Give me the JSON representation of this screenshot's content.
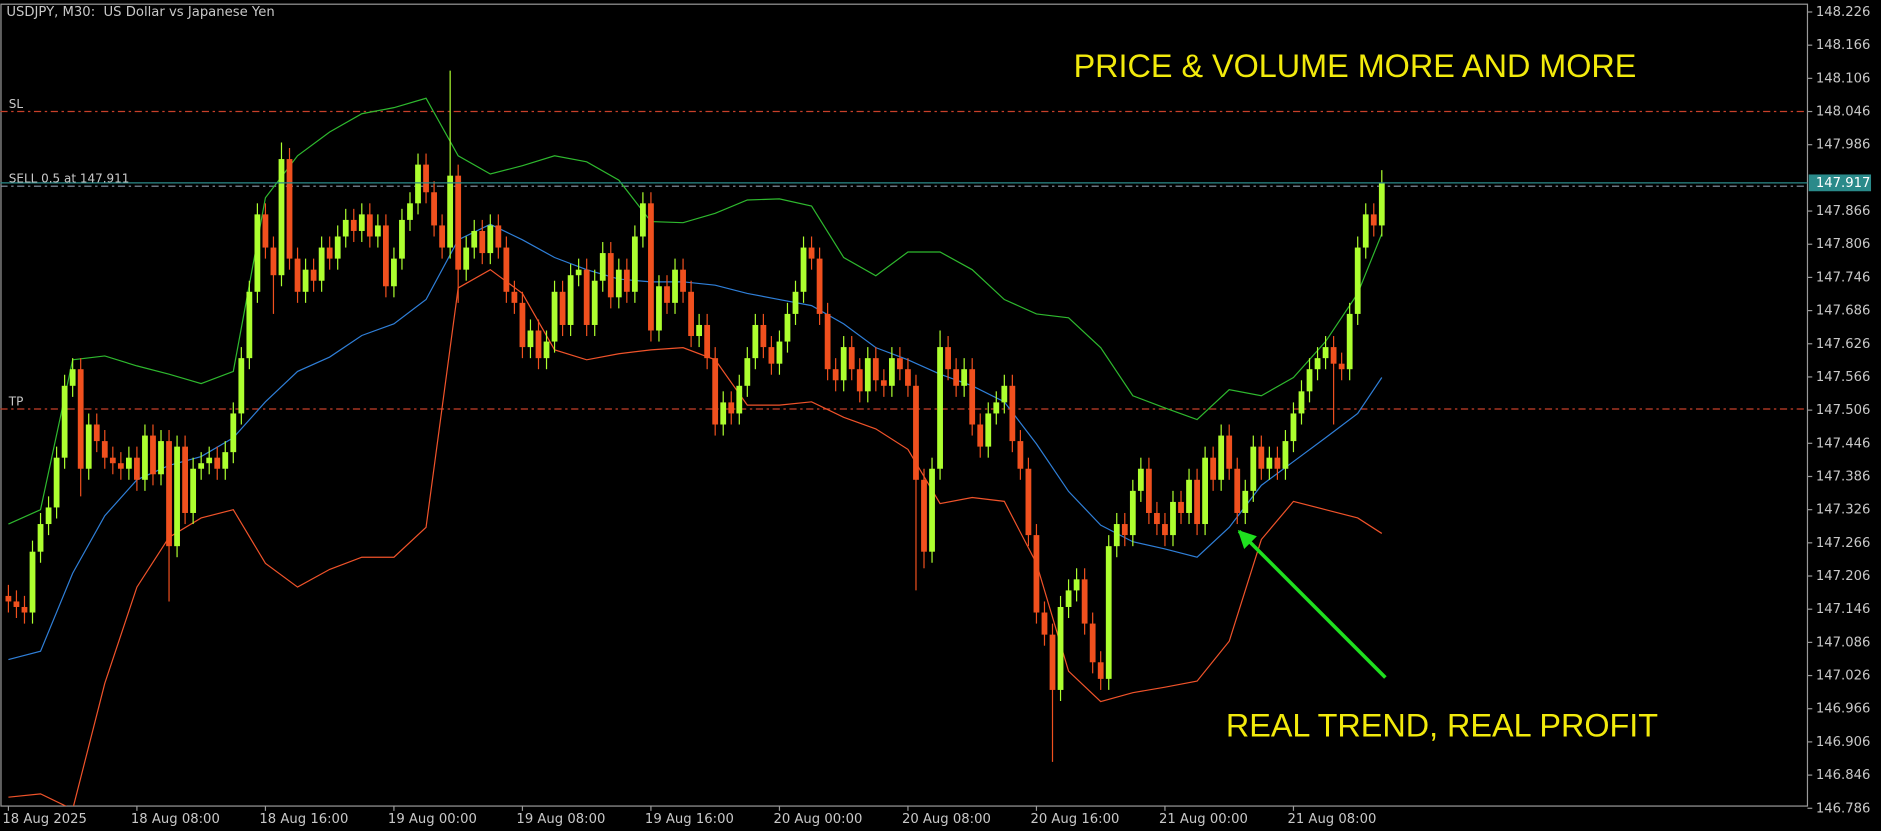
{
  "chart_data": {
    "type": "candlestick",
    "title": "USDJPY, M30:  US Dollar vs Japanese Yen",
    "up_color": "#adff2f",
    "down_color": "#f0501e",
    "grid": false,
    "xlim": [
      -1,
      224
    ],
    "ylim": [
      146.79,
      148.24
    ],
    "xticks": [
      {
        "value": 0,
        "label": "18 Aug 2025"
      },
      {
        "value": 16,
        "label": "18 Aug 08:00"
      },
      {
        "value": 32,
        "label": "18 Aug 16:00"
      },
      {
        "value": 48,
        "label": "19 Aug 00:00"
      },
      {
        "value": 64,
        "label": "19 Aug 08:00"
      },
      {
        "value": 80,
        "label": "19 Aug 16:00"
      },
      {
        "value": 96,
        "label": "20 Aug 00:00"
      },
      {
        "value": 112,
        "label": "20 Aug 08:00"
      },
      {
        "value": 128,
        "label": "20 Aug 16:00"
      },
      {
        "value": 144,
        "label": "21 Aug 00:00"
      },
      {
        "value": 160,
        "label": "21 Aug 08:00"
      }
    ],
    "yticks": [
      148.226,
      148.166,
      148.106,
      148.046,
      147.986,
      147.866,
      147.806,
      147.746,
      147.686,
      147.626,
      147.566,
      147.506,
      147.446,
      147.386,
      147.326,
      147.266,
      147.206,
      147.146,
      147.086,
      147.026,
      146.966,
      146.906,
      146.846,
      146.786
    ],
    "candles": {
      "open": [
        147.17,
        147.16,
        147.15,
        147.14,
        147.25,
        147.3,
        147.33,
        147.42,
        147.55,
        147.58,
        147.4,
        147.48,
        147.45,
        147.42,
        147.41,
        147.4,
        147.42,
        147.38,
        147.46,
        147.39,
        147.45,
        147.26,
        147.44,
        147.32,
        147.4,
        147.41,
        147.42,
        147.4,
        147.43,
        147.5,
        147.6,
        147.72,
        147.86,
        147.8,
        147.75,
        147.96,
        147.78,
        147.72,
        147.76,
        147.74,
        147.8,
        147.78,
        147.82,
        147.85,
        147.83,
        147.86,
        147.82,
        147.84,
        147.73,
        147.78,
        147.85,
        147.88,
        147.95,
        147.9,
        147.84,
        147.8,
        147.93,
        147.76,
        147.8,
        147.83,
        147.79,
        147.84,
        147.8,
        147.72,
        147.7,
        147.62,
        147.65,
        147.6,
        147.63,
        147.72,
        147.66,
        147.75,
        147.76,
        147.66,
        147.74,
        147.79,
        147.71,
        147.76,
        147.72,
        147.82,
        147.88,
        147.65,
        147.73,
        147.7,
        147.76,
        147.72,
        147.64,
        147.66,
        147.6,
        147.48,
        147.52,
        147.5,
        147.55,
        147.6,
        147.66,
        147.62,
        147.59,
        147.63,
        147.68,
        147.72,
        147.8,
        147.78,
        147.68,
        147.58,
        147.56,
        147.62,
        147.58,
        147.54,
        147.6,
        147.56,
        147.55,
        147.6,
        147.58,
        147.55,
        147.38,
        147.25,
        147.4,
        147.62,
        147.58,
        147.55,
        147.58,
        147.48,
        147.44,
        147.5,
        147.52,
        147.55,
        147.45,
        147.4,
        147.28,
        147.14,
        147.1,
        147.0,
        147.15,
        147.18,
        147.2,
        147.12,
        147.05,
        147.02,
        147.26,
        147.3,
        147.28,
        147.36,
        147.4,
        147.32,
        147.3,
        147.28,
        147.34,
        147.32,
        147.38,
        147.3,
        147.42,
        147.38,
        147.46,
        147.4,
        147.32,
        147.36,
        147.44,
        147.4,
        147.42,
        147.4,
        147.45,
        147.5,
        147.54,
        147.58,
        147.6,
        147.62,
        147.59,
        147.58,
        147.68,
        147.8,
        147.86,
        147.84
      ],
      "high": [
        147.19,
        147.18,
        147.17,
        147.27,
        147.32,
        147.35,
        147.44,
        147.57,
        147.6,
        147.6,
        147.5,
        147.5,
        147.47,
        147.44,
        147.43,
        147.44,
        147.44,
        147.48,
        147.48,
        147.47,
        147.47,
        147.46,
        147.46,
        147.42,
        147.43,
        147.44,
        147.44,
        147.45,
        147.52,
        147.62,
        147.74,
        147.88,
        147.88,
        147.82,
        147.99,
        147.98,
        147.8,
        147.78,
        147.78,
        147.82,
        147.82,
        147.84,
        147.87,
        147.87,
        147.88,
        147.88,
        147.86,
        147.86,
        147.8,
        147.87,
        147.9,
        147.97,
        147.97,
        147.92,
        147.86,
        148.12,
        147.95,
        147.82,
        147.85,
        147.85,
        147.86,
        147.86,
        147.82,
        147.74,
        147.72,
        147.67,
        147.67,
        147.65,
        147.74,
        147.74,
        147.77,
        147.78,
        147.78,
        147.76,
        147.81,
        147.81,
        147.78,
        147.78,
        147.84,
        147.9,
        147.9,
        147.75,
        147.75,
        147.78,
        147.78,
        147.74,
        147.68,
        147.68,
        147.62,
        147.54,
        147.54,
        147.57,
        147.62,
        147.68,
        147.68,
        147.64,
        147.65,
        147.7,
        147.74,
        147.82,
        147.82,
        147.8,
        147.7,
        147.6,
        147.64,
        147.64,
        147.6,
        147.62,
        147.62,
        147.58,
        147.62,
        147.62,
        147.6,
        147.57,
        147.4,
        147.42,
        147.65,
        147.64,
        147.6,
        147.6,
        147.6,
        147.5,
        147.52,
        147.54,
        147.57,
        147.57,
        147.47,
        147.42,
        147.3,
        147.16,
        147.12,
        147.17,
        147.2,
        147.22,
        147.22,
        147.14,
        147.07,
        147.28,
        147.32,
        147.32,
        147.38,
        147.42,
        147.42,
        147.34,
        147.32,
        147.36,
        147.36,
        147.4,
        147.4,
        147.44,
        147.44,
        147.48,
        147.48,
        147.42,
        147.38,
        147.46,
        147.46,
        147.44,
        147.44,
        147.47,
        147.52,
        147.56,
        147.6,
        147.62,
        147.64,
        147.64,
        147.61,
        147.7,
        147.82,
        147.88,
        147.88,
        147.94
      ],
      "low": [
        147.14,
        147.13,
        147.12,
        147.12,
        147.23,
        147.28,
        147.31,
        147.4,
        147.53,
        147.35,
        147.38,
        147.43,
        147.4,
        147.39,
        147.38,
        147.38,
        147.36,
        147.36,
        147.37,
        147.37,
        147.16,
        147.24,
        147.3,
        147.3,
        147.38,
        147.39,
        147.38,
        147.38,
        147.41,
        147.48,
        147.58,
        147.7,
        147.78,
        147.68,
        147.73,
        147.76,
        147.7,
        147.7,
        147.72,
        147.72,
        147.76,
        147.76,
        147.8,
        147.81,
        147.81,
        147.8,
        147.8,
        147.71,
        147.71,
        147.76,
        147.83,
        147.86,
        147.88,
        147.82,
        147.78,
        147.78,
        147.7,
        147.74,
        147.78,
        147.77,
        147.77,
        147.78,
        147.7,
        147.68,
        147.6,
        147.6,
        147.58,
        147.58,
        147.61,
        147.64,
        147.64,
        147.73,
        147.64,
        147.64,
        147.72,
        147.69,
        147.69,
        147.7,
        147.7,
        147.8,
        147.63,
        147.63,
        147.68,
        147.68,
        147.7,
        147.62,
        147.62,
        147.58,
        147.46,
        147.46,
        147.48,
        147.48,
        147.53,
        147.58,
        147.6,
        147.57,
        147.57,
        147.61,
        147.66,
        147.7,
        147.76,
        147.66,
        147.56,
        147.54,
        147.54,
        147.56,
        147.52,
        147.52,
        147.54,
        147.53,
        147.53,
        147.56,
        147.53,
        147.18,
        147.22,
        147.23,
        147.38,
        147.56,
        147.53,
        147.53,
        147.46,
        147.42,
        147.42,
        147.48,
        147.5,
        147.43,
        147.38,
        147.26,
        147.12,
        147.08,
        146.87,
        146.98,
        147.13,
        147.16,
        147.1,
        147.03,
        147.0,
        147.0,
        147.24,
        147.26,
        147.26,
        147.34,
        147.3,
        147.28,
        147.26,
        147.26,
        147.3,
        147.3,
        147.28,
        147.28,
        147.36,
        147.36,
        147.38,
        147.3,
        147.3,
        147.34,
        147.38,
        147.38,
        147.38,
        147.38,
        147.43,
        147.48,
        147.52,
        147.56,
        147.58,
        147.48,
        147.56,
        147.56,
        147.66,
        147.78,
        147.82,
        147.82
      ],
      "close": [
        147.16,
        147.15,
        147.14,
        147.25,
        147.3,
        147.33,
        147.42,
        147.55,
        147.58,
        147.4,
        147.48,
        147.45,
        147.42,
        147.41,
        147.4,
        147.42,
        147.38,
        147.46,
        147.39,
        147.45,
        147.26,
        147.44,
        147.32,
        147.4,
        147.41,
        147.42,
        147.4,
        147.43,
        147.5,
        147.6,
        147.72,
        147.86,
        147.8,
        147.75,
        147.96,
        147.78,
        147.72,
        147.76,
        147.74,
        147.8,
        147.78,
        147.82,
        147.85,
        147.83,
        147.86,
        147.82,
        147.84,
        147.73,
        147.78,
        147.85,
        147.88,
        147.95,
        147.9,
        147.84,
        147.8,
        147.93,
        147.76,
        147.8,
        147.83,
        147.79,
        147.84,
        147.8,
        147.72,
        147.7,
        147.62,
        147.65,
        147.6,
        147.63,
        147.72,
        147.66,
        147.75,
        147.76,
        147.66,
        147.74,
        147.79,
        147.71,
        147.76,
        147.72,
        147.82,
        147.88,
        147.65,
        147.73,
        147.7,
        147.76,
        147.72,
        147.64,
        147.66,
        147.6,
        147.48,
        147.52,
        147.5,
        147.55,
        147.6,
        147.66,
        147.62,
        147.59,
        147.63,
        147.68,
        147.72,
        147.8,
        147.78,
        147.68,
        147.58,
        147.56,
        147.62,
        147.58,
        147.54,
        147.6,
        147.56,
        147.55,
        147.6,
        147.58,
        147.55,
        147.38,
        147.25,
        147.4,
        147.62,
        147.58,
        147.55,
        147.58,
        147.48,
        147.44,
        147.5,
        147.52,
        147.55,
        147.45,
        147.4,
        147.28,
        147.14,
        147.1,
        147.0,
        147.15,
        147.18,
        147.2,
        147.12,
        147.05,
        147.02,
        147.26,
        147.3,
        147.28,
        147.36,
        147.4,
        147.32,
        147.3,
        147.28,
        147.34,
        147.32,
        147.38,
        147.3,
        147.42,
        147.38,
        147.46,
        147.4,
        147.32,
        147.36,
        147.44,
        147.4,
        147.42,
        147.4,
        147.45,
        147.5,
        147.54,
        147.58,
        147.6,
        147.62,
        147.59,
        147.58,
        147.68,
        147.8,
        147.86,
        147.84,
        147.917
      ]
    },
    "series": [
      {
        "color": "#2f7fd8",
        "x": [
          0,
          4,
          8,
          12,
          16,
          20,
          24,
          28,
          32,
          36,
          40,
          44,
          48,
          52,
          56,
          60,
          64,
          68,
          72,
          76,
          80,
          84,
          88,
          92,
          96,
          100,
          104,
          108,
          112,
          116,
          120,
          124,
          128,
          132,
          136,
          140,
          144,
          148,
          152,
          156,
          160,
          164,
          168,
          171
        ],
        "values": [
          147.055,
          147.07,
          147.211,
          147.315,
          147.38,
          147.406,
          147.422,
          147.456,
          147.521,
          147.576,
          147.602,
          147.641,
          147.662,
          147.706,
          147.814,
          147.842,
          147.814,
          147.782,
          147.76,
          147.743,
          147.738,
          147.738,
          147.732,
          147.717,
          147.706,
          147.695,
          147.662,
          147.619,
          147.597,
          147.571,
          147.55,
          147.521,
          147.445,
          147.359,
          147.298,
          147.268,
          147.255,
          147.24,
          147.294,
          147.37,
          147.413,
          147.456,
          147.5,
          147.565
        ]
      },
      {
        "color": "#2eb82e",
        "x": [
          0,
          4,
          8,
          12,
          16,
          20,
          24,
          28,
          32,
          36,
          40,
          44,
          48,
          52,
          56,
          60,
          64,
          68,
          72,
          76,
          80,
          84,
          88,
          92,
          96,
          100,
          104,
          108,
          112,
          116,
          120,
          124,
          128,
          132,
          136,
          140,
          144,
          148,
          152,
          156,
          160,
          164,
          168,
          171
        ],
        "values": [
          147.3,
          147.326,
          147.597,
          147.604,
          147.586,
          147.571,
          147.554,
          147.576,
          147.89,
          147.966,
          148.009,
          148.042,
          148.053,
          148.07,
          147.966,
          147.933,
          147.948,
          147.966,
          147.955,
          147.922,
          147.847,
          147.845,
          147.862,
          147.886,
          147.888,
          147.875,
          147.782,
          147.749,
          147.792,
          147.792,
          147.76,
          147.706,
          147.68,
          147.673,
          147.619,
          147.532,
          147.51,
          147.489,
          147.543,
          147.532,
          147.565,
          147.63,
          147.717,
          147.825
        ]
      },
      {
        "color": "#f0532a",
        "x": [
          0,
          4,
          8,
          12,
          16,
          20,
          24,
          28,
          32,
          36,
          40,
          44,
          48,
          52,
          56,
          60,
          64,
          68,
          72,
          76,
          80,
          84,
          88,
          92,
          96,
          100,
          104,
          108,
          112,
          116,
          120,
          124,
          128,
          132,
          136,
          140,
          144,
          148,
          152,
          156,
          160,
          164,
          168,
          171
        ],
        "values": [
          146.806,
          146.812,
          146.784,
          147.012,
          147.186,
          147.276,
          147.311,
          147.326,
          147.229,
          147.186,
          147.218,
          147.24,
          147.24,
          147.294,
          147.727,
          147.76,
          147.717,
          147.615,
          147.597,
          147.608,
          147.615,
          147.619,
          147.597,
          147.515,
          147.515,
          147.521,
          147.493,
          147.472,
          147.435,
          147.337,
          147.348,
          147.341,
          147.229,
          147.034,
          146.979,
          146.995,
          147.005,
          147.016,
          147.088,
          147.272,
          147.341,
          147.326,
          147.311,
          147.283
        ]
      }
    ],
    "levels": [
      {
        "label": "SL",
        "value": 148.046,
        "color": "#c8402a"
      },
      {
        "label": "SELL 0.5 at 147.911",
        "value": 147.911,
        "color": "#8a9aaa"
      },
      {
        "label": "TP",
        "value": 147.508,
        "color": "#c8402a"
      }
    ],
    "last_price": 147.917,
    "last_price_color": "#2a8a8a",
    "annotations": [
      "PRICE & VOLUME MORE AND MORE",
      "REAL TREND, REAL PROFIT"
    ],
    "annotation_color": "#f2ea0c"
  }
}
